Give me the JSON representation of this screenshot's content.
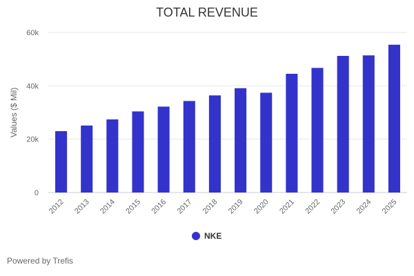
{
  "chart_data": {
    "type": "bar",
    "title": "TOTAL REVENUE",
    "xlabel": "",
    "ylabel": "Values ($ Mil)",
    "ylim": [
      0,
      60000
    ],
    "yticks": [
      0,
      20000,
      40000,
      60000
    ],
    "ytick_labels": [
      "0",
      "20k",
      "40k",
      "60k"
    ],
    "categories": [
      "2012",
      "2013",
      "2014",
      "2015",
      "2016",
      "2017",
      "2018",
      "2019",
      "2020",
      "2021",
      "2022",
      "2023",
      "2024",
      "2025"
    ],
    "series": [
      {
        "name": "NKE",
        "color": "#3333cc",
        "values": [
          23000,
          25100,
          27400,
          30400,
          32200,
          34300,
          36400,
          39100,
          37400,
          44500,
          46700,
          51200,
          51400,
          55400
        ]
      }
    ],
    "grid": true,
    "legend": "bottom-center"
  },
  "footer": {
    "text": "Powered by Trefis"
  }
}
